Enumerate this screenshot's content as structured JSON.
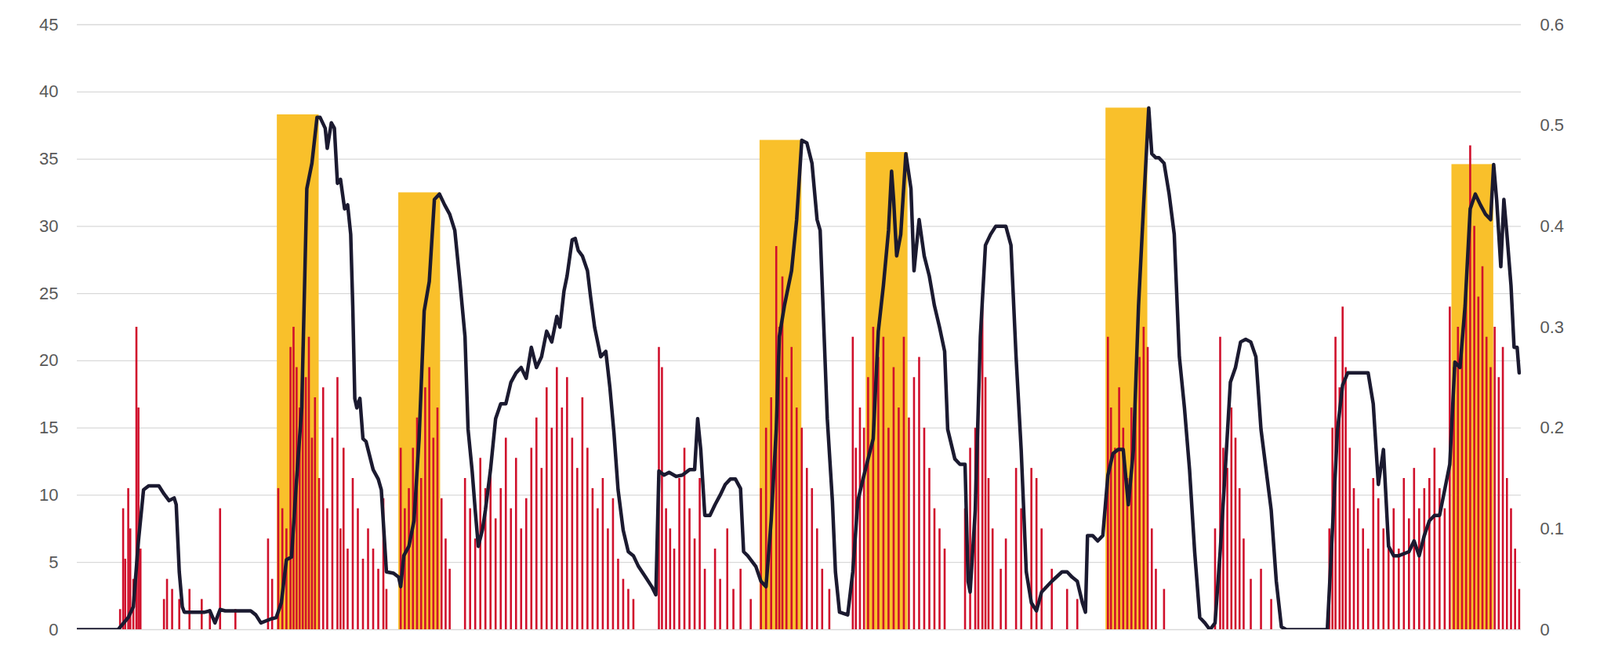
{
  "chart_data": {
    "type": "combo",
    "xlim": [
      75,
      1490
    ],
    "ylim": [
      0,
      45
    ],
    "yticks": [
      0,
      5,
      10,
      15,
      20,
      25,
      30,
      35,
      40,
      45
    ],
    "y2lim": [
      0,
      0.6
    ],
    "y2ticks": [
      0,
      0.1,
      0.2,
      0.3,
      0.4,
      0.5,
      0.6
    ],
    "grid": true,
    "tick_labels": "y",
    "series": [
      {
        "type": "bar",
        "color": "#f9c02b",
        "x": [
          271,
          390,
          744,
          848,
          1083,
          1422
        ],
        "x_end": [
          312,
          431,
          785,
          889,
          1124,
          1463
        ],
        "values": [
          38.3,
          32.5,
          36.4,
          35.5,
          38.8,
          34.6
        ]
      },
      {
        "type": "bar",
        "color": "#d0102c",
        "axis": "y2",
        "x": [
          117,
          120,
          122,
          125,
          127,
          130,
          133,
          135,
          137,
          160,
          163,
          168,
          175,
          185,
          197,
          205,
          215,
          230,
          262,
          266,
          272,
          276,
          280,
          284,
          287,
          290,
          293,
          296,
          299,
          302,
          305,
          308,
          312,
          316,
          320,
          325,
          330,
          333,
          336,
          340,
          345,
          350,
          355,
          360,
          365,
          370,
          375,
          378,
          392,
          396,
          400,
          404,
          408,
          412,
          416,
          420,
          424,
          428,
          432,
          436,
          440,
          455,
          460,
          465,
          470,
          475,
          480,
          485,
          490,
          495,
          500,
          505,
          510,
          515,
          520,
          525,
          530,
          535,
          540,
          545,
          550,
          555,
          560,
          565,
          570,
          575,
          580,
          585,
          590,
          595,
          600,
          605,
          610,
          615,
          620,
          645,
          648,
          652,
          656,
          660,
          665,
          670,
          675,
          680,
          685,
          690,
          700,
          705,
          712,
          718,
          725,
          735,
          745,
          750,
          755,
          760,
          763,
          766,
          770,
          775,
          780,
          785,
          790,
          795,
          800,
          805,
          812,
          835,
          838,
          842,
          846,
          850,
          855,
          860,
          865,
          870,
          875,
          880,
          885,
          890,
          895,
          900,
          905,
          910,
          915,
          920,
          925,
          945,
          950,
          955,
          958,
          962,
          965,
          968,
          972,
          980,
          985,
          995,
          1000,
          1010,
          1015,
          1020,
          1030,
          1045,
          1055,
          1085,
          1088,
          1092,
          1096,
          1100,
          1104,
          1108,
          1112,
          1116,
          1120,
          1124,
          1128,
          1132,
          1140,
          1190,
          1195,
          1198,
          1202,
          1206,
          1210,
          1214,
          1218,
          1225,
          1235,
          1245,
          1302,
          1305,
          1308,
          1312,
          1315,
          1318,
          1322,
          1326,
          1330,
          1335,
          1340,
          1345,
          1350,
          1355,
          1360,
          1365,
          1370,
          1375,
          1380,
          1385,
          1390,
          1395,
          1400,
          1405,
          1410,
          1415,
          1420,
          1424,
          1428,
          1432,
          1436,
          1440,
          1444,
          1448,
          1452,
          1456,
          1460,
          1464,
          1468,
          1472,
          1476,
          1480,
          1484,
          1488
        ],
        "values": [
          0.02,
          0.12,
          0.07,
          0.14,
          0.1,
          0.05,
          0.3,
          0.22,
          0.08,
          0.03,
          0.05,
          0.04,
          0.03,
          0.04,
          0.03,
          0.02,
          0.12,
          0.02,
          0.09,
          0.05,
          0.14,
          0.12,
          0.1,
          0.28,
          0.3,
          0.26,
          0.22,
          0.28,
          0.25,
          0.29,
          0.19,
          0.23,
          0.15,
          0.24,
          0.12,
          0.19,
          0.25,
          0.1,
          0.18,
          0.08,
          0.15,
          0.12,
          0.07,
          0.1,
          0.08,
          0.06,
          0.13,
          0.04,
          0.18,
          0.12,
          0.14,
          0.18,
          0.21,
          0.15,
          0.24,
          0.26,
          0.19,
          0.22,
          0.13,
          0.09,
          0.06,
          0.15,
          0.12,
          0.09,
          0.17,
          0.14,
          0.16,
          0.11,
          0.14,
          0.19,
          0.12,
          0.17,
          0.1,
          0.13,
          0.18,
          0.21,
          0.16,
          0.24,
          0.2,
          0.26,
          0.22,
          0.25,
          0.19,
          0.16,
          0.23,
          0.18,
          0.14,
          0.12,
          0.15,
          0.1,
          0.13,
          0.07,
          0.05,
          0.04,
          0.03,
          0.28,
          0.26,
          0.12,
          0.1,
          0.08,
          0.15,
          0.18,
          0.12,
          0.09,
          0.15,
          0.06,
          0.08,
          0.05,
          0.1,
          0.04,
          0.06,
          0.03,
          0.14,
          0.2,
          0.23,
          0.38,
          0.3,
          0.35,
          0.25,
          0.28,
          0.22,
          0.2,
          0.16,
          0.14,
          0.1,
          0.06,
          0.04,
          0.29,
          0.18,
          0.22,
          0.2,
          0.25,
          0.3,
          0.27,
          0.29,
          0.2,
          0.26,
          0.22,
          0.29,
          0.21,
          0.25,
          0.27,
          0.2,
          0.16,
          0.12,
          0.1,
          0.08,
          0.12,
          0.18,
          0.2,
          0.22,
          0.33,
          0.25,
          0.15,
          0.1,
          0.06,
          0.09,
          0.16,
          0.12,
          0.16,
          0.15,
          0.1,
          0.06,
          0.04,
          0.03,
          0.29,
          0.22,
          0.18,
          0.24,
          0.2,
          0.15,
          0.22,
          0.25,
          0.27,
          0.3,
          0.28,
          0.1,
          0.06,
          0.04,
          0.1,
          0.29,
          0.18,
          0.16,
          0.22,
          0.19,
          0.14,
          0.09,
          0.05,
          0.06,
          0.03,
          0.1,
          0.2,
          0.29,
          0.24,
          0.32,
          0.26,
          0.18,
          0.14,
          0.12,
          0.1,
          0.08,
          0.15,
          0.13,
          0.1,
          0.09,
          0.12,
          0.08,
          0.15,
          0.11,
          0.16,
          0.12,
          0.14,
          0.15,
          0.18,
          0.14,
          0.12,
          0.32,
          0.26,
          0.3,
          0.28,
          0.34,
          0.48,
          0.4,
          0.33,
          0.36,
          0.29,
          0.26,
          0.3,
          0.25,
          0.28,
          0.15,
          0.12,
          0.08,
          0.04
        ]
      },
      {
        "type": "line",
        "color": "#1b1a30",
        "x": [
          75,
          115,
          125,
          130,
          135,
          140,
          145,
          155,
          160,
          165,
          170,
          172,
          175,
          178,
          180,
          200,
          205,
          210,
          215,
          220,
          245,
          250,
          255,
          265,
          270,
          275,
          280,
          285,
          290,
          295,
          300,
          305,
          310,
          313,
          318,
          320,
          324,
          327,
          330,
          333,
          337,
          340,
          343,
          345,
          347,
          349,
          352,
          355,
          358,
          360,
          365,
          370,
          373,
          378,
          385,
          390,
          392,
          395,
          400,
          405,
          410,
          415,
          420,
          425,
          430,
          435,
          440,
          445,
          450,
          455,
          458,
          462,
          465,
          468,
          472,
          475,
          480,
          485,
          490,
          495,
          500,
          505,
          510,
          515,
          520,
          525,
          530,
          535,
          540,
          545,
          548,
          552,
          555,
          560,
          563,
          566,
          570,
          575,
          578,
          582,
          588,
          593,
          597,
          601,
          605,
          610,
          615,
          620,
          625,
          632,
          638,
          642,
          645,
          650,
          655,
          662,
          668,
          675,
          680,
          683,
          686,
          690,
          695,
          700,
          705,
          710,
          715,
          720,
          725,
          728,
          732,
          740,
          745,
          750,
          755,
          760,
          763,
          768,
          775,
          780,
          785,
          790,
          795,
          800,
          803,
          810,
          815,
          818,
          822,
          830,
          835,
          840,
          845,
          850,
          855,
          860,
          865,
          870,
          873,
          875,
          878,
          882,
          887,
          892,
          895,
          900,
          905,
          910,
          915,
          920,
          925,
          928,
          935,
          940,
          945,
          948,
          950,
          955,
          960,
          965,
          970,
          975,
          985,
          990,
          995,
          1000,
          1005,
          1010,
          1015,
          1020,
          1030,
          1040,
          1045,
          1050,
          1055,
          1060,
          1063,
          1065,
          1070,
          1075,
          1080,
          1085,
          1090,
          1095,
          1100,
          1105,
          1110,
          1115,
          1120,
          1125,
          1128,
          1132,
          1135,
          1140,
          1145,
          1150,
          1155,
          1160,
          1165,
          1170,
          1175,
          1180,
          1185,
          1190,
          1195,
          1200,
          1205,
          1210,
          1215,
          1220,
          1225,
          1230,
          1235,
          1240,
          1245,
          1250,
          1255,
          1260,
          1300,
          1305,
          1310,
          1315,
          1320,
          1325,
          1340,
          1345,
          1350,
          1355,
          1360,
          1365,
          1370,
          1380,
          1385,
          1390,
          1395,
          1400,
          1405,
          1410,
          1415,
          1420,
          1425,
          1430,
          1435,
          1440,
          1445,
          1450,
          1455,
          1460,
          1463,
          1466,
          1470,
          1473,
          1476,
          1480,
          1483,
          1486,
          1488
        ],
        "values": [
          0,
          0,
          0.9,
          1.7,
          6.6,
          10.4,
          10.7,
          10.7,
          10.1,
          9.6,
          9.8,
          9.3,
          4.3,
          1.7,
          1.3,
          1.3,
          1.4,
          0.5,
          1.5,
          1.4,
          1.4,
          1.1,
          0.5,
          0.8,
          0.9,
          2.0,
          5.2,
          5.4,
          11.2,
          16.5,
          32.8,
          34.7,
          38.1,
          38.1,
          37.3,
          35.8,
          37.7,
          37.3,
          33.2,
          33.5,
          31.3,
          31.6,
          29.4,
          24.1,
          17.2,
          16.5,
          17.2,
          14.2,
          14.0,
          13.4,
          11.9,
          11.2,
          10.4,
          4.3,
          4.2,
          3.9,
          3.2,
          5.5,
          6.2,
          8.1,
          14.2,
          23.7,
          25.9,
          32.0,
          32.4,
          31.6,
          30.9,
          29.7,
          25.9,
          21.8,
          14.9,
          11.8,
          8.9,
          6.2,
          7.4,
          8.9,
          11.9,
          15.7,
          16.8,
          16.8,
          18.4,
          19.1,
          19.5,
          18.7,
          21.0,
          19.5,
          20.3,
          22.2,
          21.4,
          23.3,
          22.5,
          25.2,
          26.3,
          29.0,
          29.1,
          28.2,
          27.8,
          26.7,
          24.8,
          22.5,
          20.3,
          20.7,
          18.0,
          14.6,
          10.4,
          7.4,
          5.8,
          5.5,
          4.7,
          3.9,
          3.2,
          2.6,
          11.8,
          11.5,
          11.7,
          11.4,
          11.5,
          11.9,
          11.9,
          15.7,
          13.4,
          8.5,
          8.5,
          9.3,
          10.0,
          10.8,
          11.2,
          11.2,
          10.5,
          5.8,
          5.5,
          4.7,
          3.6,
          3.2,
          8.1,
          14.9,
          21.8,
          24.1,
          26.7,
          30.5,
          36.4,
          36.2,
          34.7,
          30.5,
          29.7,
          15.7,
          9.6,
          4.3,
          1.3,
          1.1,
          4.3,
          9.6,
          11.2,
          12.7,
          14.2,
          22.2,
          25.6,
          29.7,
          34.1,
          32.0,
          27.8,
          29.4,
          35.4,
          32.8,
          26.7,
          30.5,
          27.8,
          26.3,
          24.1,
          22.5,
          20.7,
          14.9,
          12.7,
          12.3,
          12.3,
          3.6,
          2.8,
          8.9,
          21.8,
          28.6,
          29.4,
          30.0,
          30.0,
          28.6,
          20.3,
          13.4,
          4.3,
          2.0,
          1.4,
          2.8,
          3.6,
          4.3,
          4.3,
          3.9,
          3.6,
          2.0,
          1.3,
          7.0,
          7.0,
          6.6,
          7.0,
          11.5,
          13.1,
          13.4,
          13.4,
          9.3,
          13.4,
          24.1,
          31.6,
          38.8,
          35.4,
          35.1,
          35.1,
          34.7,
          32.4,
          29.4,
          20.3,
          16.5,
          11.9,
          5.8,
          0.9,
          0.5,
          0,
          0.5,
          5.8,
          11.9,
          18.4,
          19.5,
          21.4,
          21.6,
          21.4,
          20.3,
          14.9,
          11.9,
          8.9,
          3.6,
          0.2,
          0,
          0,
          7.4,
          14.9,
          18.2,
          19.1,
          19.1,
          19.1,
          16.8,
          10.8,
          13.4,
          6.2,
          5.5,
          5.5,
          5.8,
          6.6,
          5.5,
          7.0,
          8.1,
          8.5,
          8.5,
          10.4,
          12.3,
          19.9,
          19.5,
          24.1,
          31.3,
          32.4,
          31.6,
          30.9,
          30.5,
          34.6,
          31.9,
          27.0,
          32.0,
          29.4,
          25.6,
          21.0,
          21.0,
          19.1
        ]
      }
    ]
  }
}
